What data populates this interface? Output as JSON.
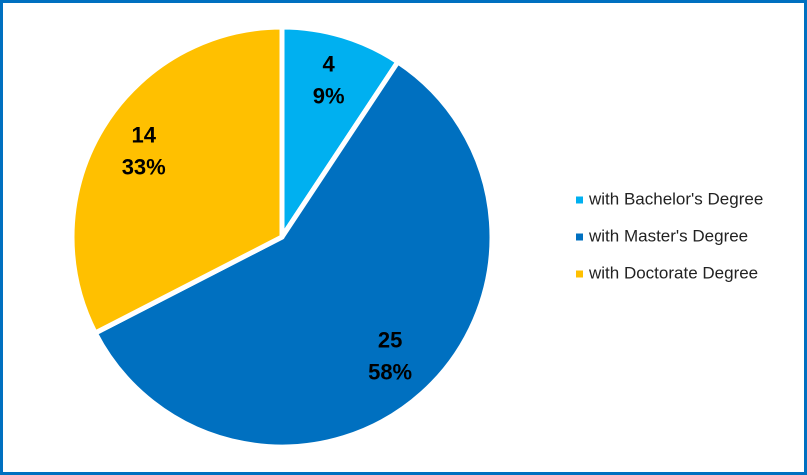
{
  "chart_data": {
    "type": "pie",
    "categories": [
      "with Bachelor's Degree",
      "with Master's Degree",
      "with Doctorate Degree"
    ],
    "values": [
      4,
      25,
      14
    ],
    "percent_labels": [
      "9%",
      "58%",
      "33%"
    ],
    "colors": [
      "#00b0f0",
      "#0070c0",
      "#ffc000"
    ],
    "legend": "right"
  }
}
